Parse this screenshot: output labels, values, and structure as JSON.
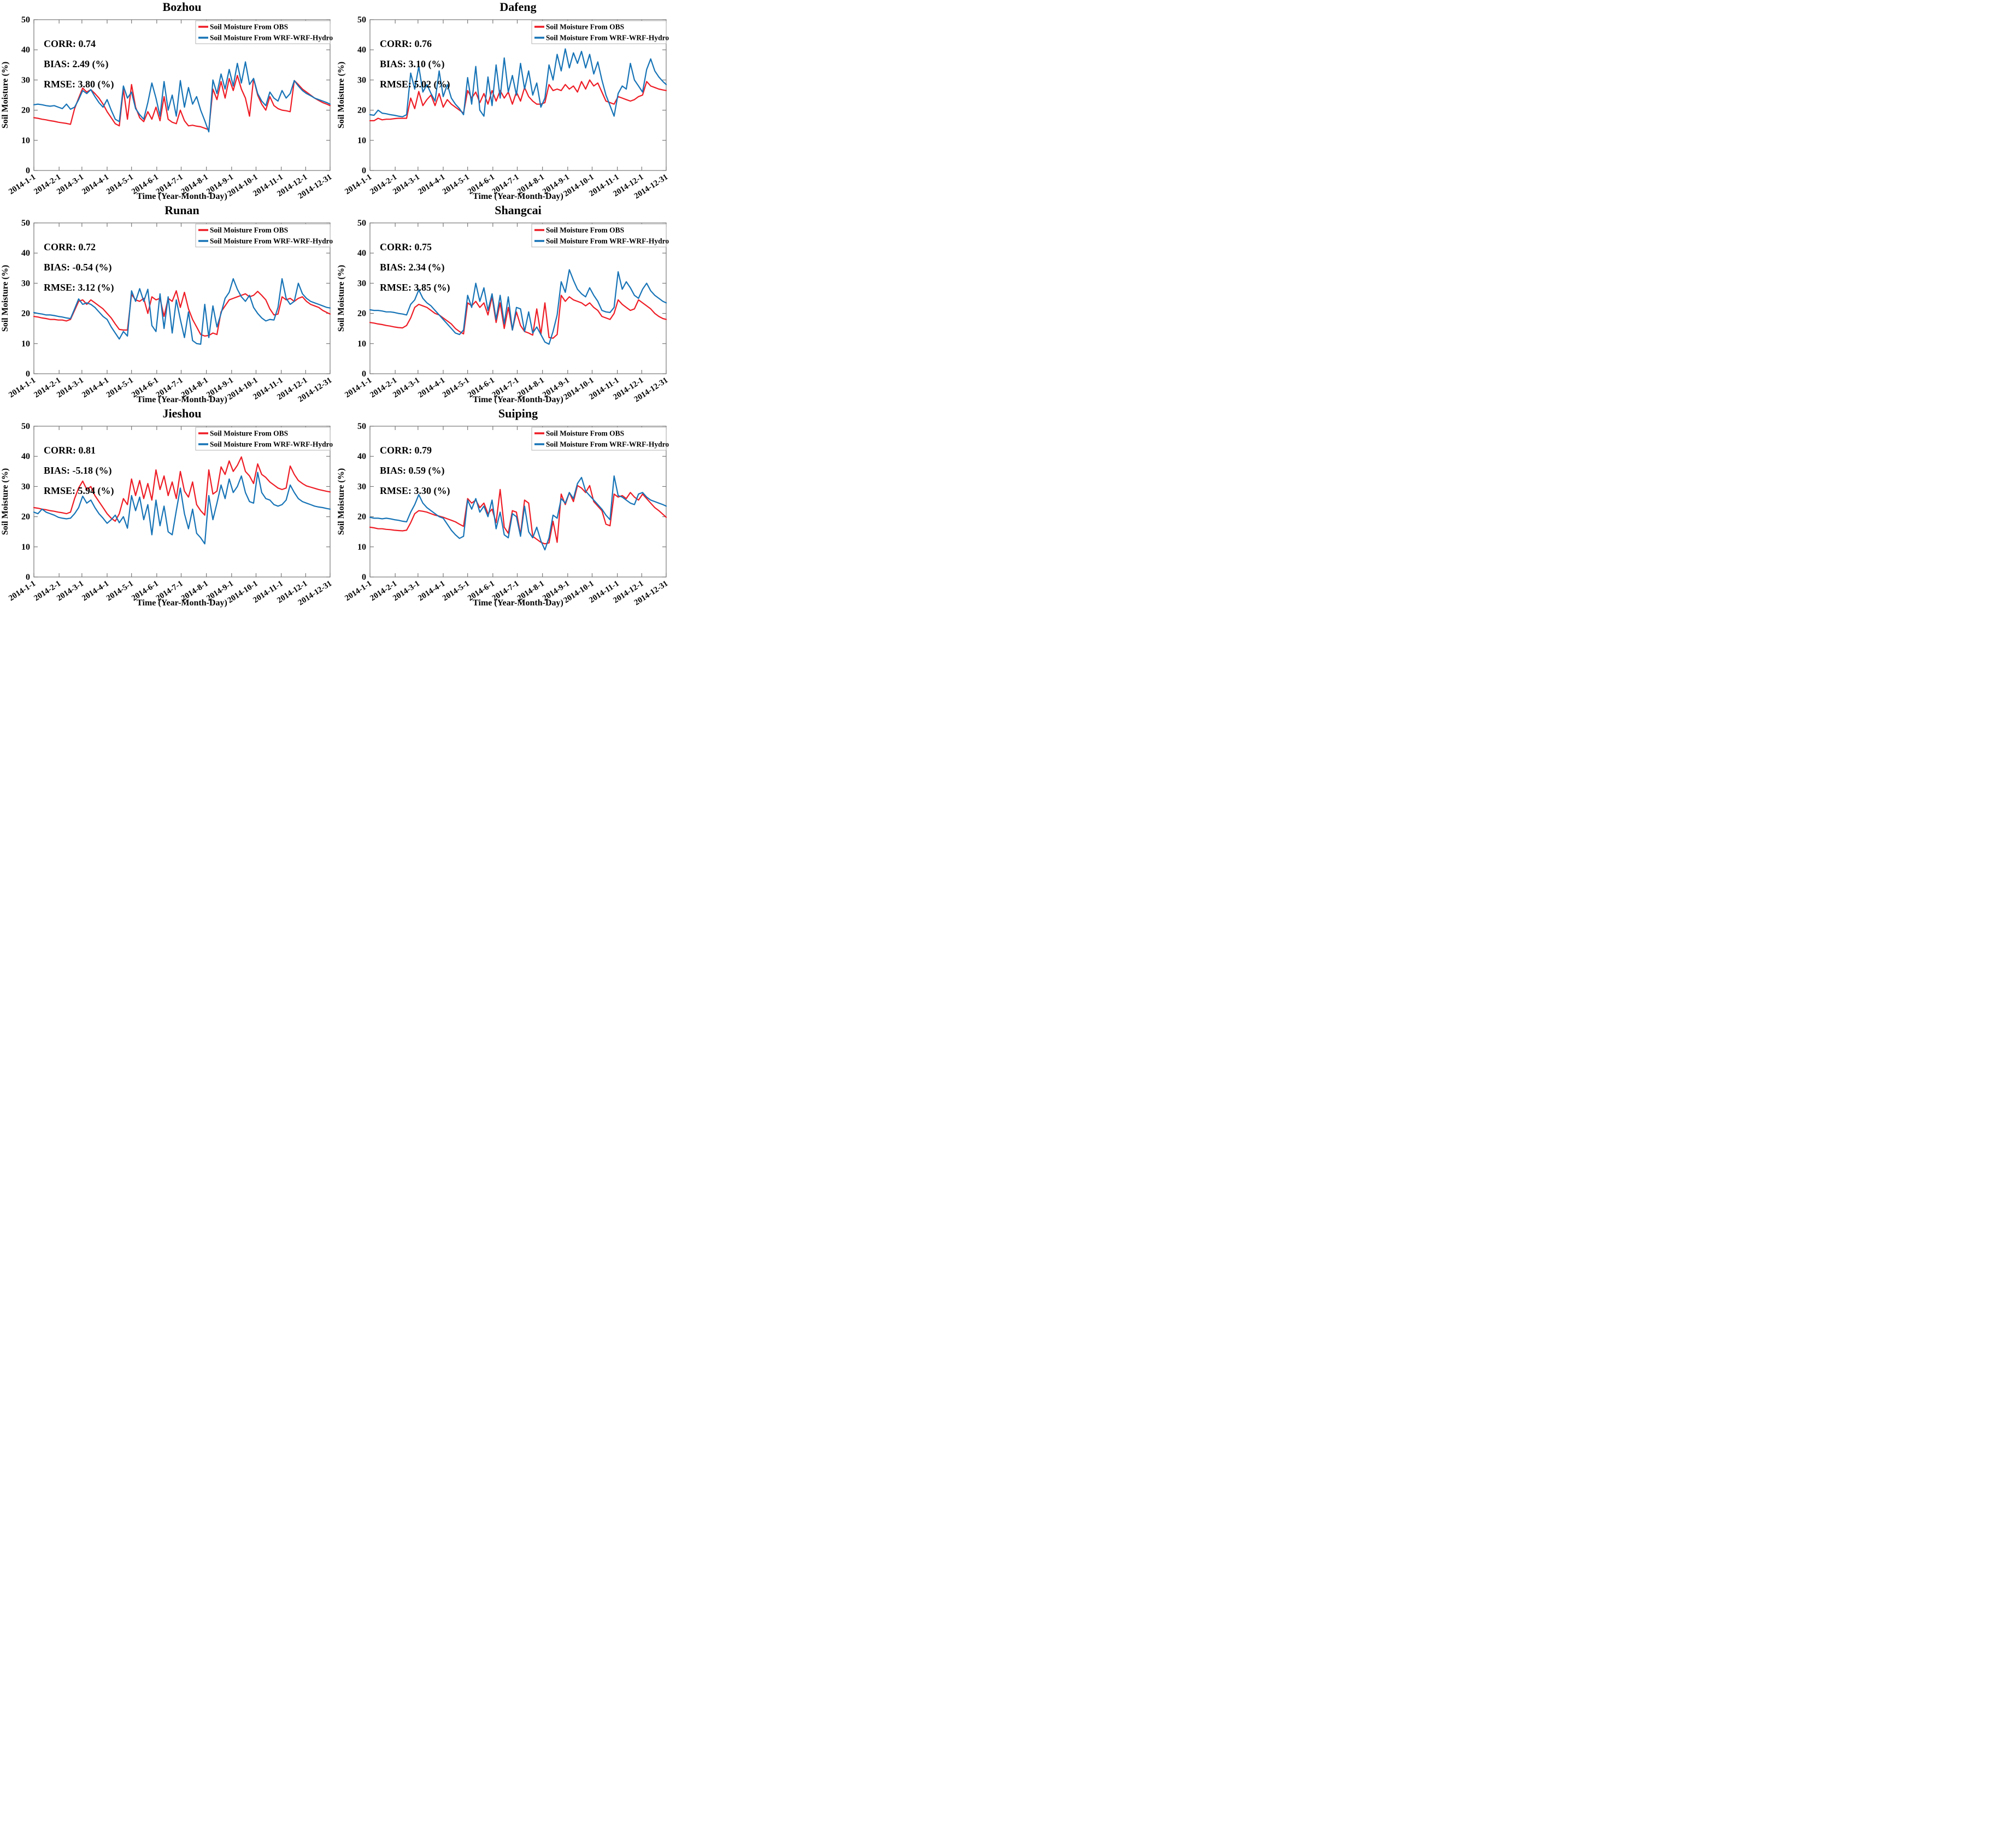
{
  "chart_common": {
    "type": "line",
    "xlabel": "Time (Year-Month-Day)",
    "ylabel": "Soil Moisture (%)",
    "ylim": [
      0,
      50
    ],
    "y_ticks": [
      0,
      10,
      20,
      30,
      40,
      50
    ],
    "x_tick_days": [
      1,
      32,
      60,
      91,
      121,
      152,
      182,
      213,
      244,
      274,
      305,
      335,
      365
    ],
    "x_tick_labels": [
      "2014-1-1",
      "2014-2-1",
      "2014-3-1",
      "2014-4-1",
      "2014-5-1",
      "2014-6-1",
      "2014-7-1",
      "2014-8-1",
      "2014-9-1",
      "2014-10-1",
      "2014-11-1",
      "2014-12-1",
      "2014-12-31"
    ],
    "x_days": [
      1,
      6,
      11,
      16,
      21,
      26,
      31,
      36,
      41,
      46,
      51,
      56,
      61,
      66,
      71,
      76,
      81,
      86,
      91,
      96,
      101,
      106,
      111,
      116,
      121,
      126,
      131,
      136,
      141,
      146,
      151,
      156,
      161,
      166,
      171,
      176,
      181,
      186,
      191,
      196,
      201,
      206,
      211,
      216,
      221,
      226,
      231,
      236,
      241,
      246,
      251,
      256,
      261,
      266,
      271,
      276,
      281,
      286,
      291,
      296,
      301,
      306,
      311,
      316,
      321,
      326,
      331,
      336,
      341,
      346,
      351,
      356,
      361,
      365
    ],
    "grid": "off",
    "legend_position": "top-right-inside",
    "legend": [
      {
        "label": "Soil Moisture From OBS",
        "color": "#ee1c25"
      },
      {
        "label": "Soil Moisture From WRF-WRF-Hydro",
        "color": "#1673b6"
      }
    ],
    "axis_color": "#777777",
    "legend_border_color": "#b0b0b0"
  },
  "chart_data": [
    {
      "id": "bozhou",
      "type": "line",
      "title": "Bozhou",
      "stats_lines": [
        "CORR: 0.74",
        "BIAS: 2.49 (%)",
        "RMSE: 3.80 (%)"
      ],
      "series": [
        {
          "name": "Soil Moisture From OBS",
          "values": [
            17.5,
            17.3,
            17,
            16.8,
            16.5,
            16.3,
            16,
            15.8,
            15.6,
            15.3,
            20.5,
            24,
            27.3,
            26,
            26.8,
            25.5,
            24,
            22,
            19.5,
            17.5,
            15.5,
            14.8,
            27,
            17,
            28.5,
            21,
            17.5,
            16.2,
            19.5,
            17,
            21,
            16.5,
            24.5,
            17,
            16,
            15.5,
            20,
            16.5,
            14.8,
            15,
            14.7,
            14.5,
            14,
            13.5,
            27,
            23.5,
            29.5,
            24,
            30.5,
            26.5,
            31.5,
            27,
            24,
            18,
            30.5,
            25,
            22,
            20,
            24.5,
            21.5,
            20.5,
            20,
            19.8,
            19.5,
            29.8,
            28.5,
            27,
            26,
            25,
            24,
            23.2,
            22.5,
            22,
            21.5
          ]
        },
        {
          "name": "Soil Moisture From WRF-WRF-Hydro",
          "values": [
            21.8,
            22,
            21.8,
            21.5,
            21.3,
            21.5,
            21,
            20.5,
            22,
            20.3,
            21,
            23.5,
            26.5,
            25.5,
            26.8,
            24.5,
            22.5,
            21,
            23.5,
            20,
            17,
            16.2,
            28,
            24,
            26,
            20.5,
            18.5,
            17,
            22.5,
            29,
            24,
            18,
            29.5,
            20,
            25,
            18,
            29.8,
            21,
            27.5,
            22,
            24.5,
            20,
            16.5,
            12.8,
            30,
            25.5,
            32,
            27,
            33.5,
            28,
            35.5,
            29,
            36,
            28.5,
            30.5,
            25.5,
            23,
            21.5,
            26,
            24,
            23,
            26.5,
            24,
            25.5,
            29.8,
            28,
            26.5,
            25.5,
            24.8,
            24,
            23.5,
            23,
            22.5,
            22
          ]
        }
      ]
    },
    {
      "id": "dafeng",
      "type": "line",
      "title": "Dafeng",
      "stats_lines": [
        "CORR: 0.76",
        "BIAS: 3.10 (%)",
        "RMSE: 5.02 (%)"
      ],
      "series": [
        {
          "name": "Soil Moisture From OBS",
          "values": [
            16.5,
            16.5,
            17.3,
            16.8,
            17,
            17,
            17.2,
            17.3,
            17.3,
            17.3,
            24,
            20.5,
            26.2,
            21.5,
            23.5,
            25,
            21.5,
            25.5,
            21,
            23.5,
            22,
            21,
            20,
            19,
            26.5,
            24,
            26,
            22.5,
            25.5,
            22,
            26.5,
            23,
            26.5,
            24,
            26,
            22,
            26,
            23,
            27.5,
            24.5,
            23,
            22,
            22,
            22.5,
            28.5,
            26.5,
            27,
            26.5,
            28.5,
            27,
            28,
            26,
            29.5,
            27,
            30,
            28,
            29,
            26,
            23,
            22.5,
            22,
            24.5,
            24,
            23.5,
            23,
            23.5,
            24.5,
            25,
            29.5,
            28,
            27.5,
            27,
            26.7,
            26.5
          ]
        },
        {
          "name": "Soil Moisture From WRF-WRF-Hydro",
          "values": [
            18.5,
            18.3,
            20,
            19,
            18.8,
            18.5,
            18.3,
            18,
            17.8,
            18.5,
            32.3,
            27,
            34.5,
            26,
            28.5,
            25.5,
            23,
            33,
            24.5,
            28.5,
            24,
            22,
            20.5,
            18.5,
            30.8,
            22,
            34.5,
            20,
            18,
            31,
            21.5,
            35,
            24,
            37.3,
            26,
            31.5,
            25,
            35.5,
            27,
            33,
            25,
            29,
            21,
            24,
            35,
            30,
            38.5,
            33,
            40.3,
            34,
            39,
            35.5,
            39.5,
            34,
            38.5,
            32,
            36,
            30,
            25,
            21.5,
            18,
            25.5,
            28,
            27,
            35.5,
            30,
            28,
            26,
            33.5,
            37,
            33,
            31,
            29.5,
            28.5
          ]
        }
      ]
    },
    {
      "id": "runan",
      "type": "line",
      "title": "Runan",
      "stats_lines": [
        "CORR: 0.72",
        "BIAS: -0.54 (%)",
        "RMSE: 3.12 (%)"
      ],
      "series": [
        {
          "name": "Soil Moisture From OBS",
          "values": [
            19,
            18.8,
            18.5,
            18.3,
            18,
            18,
            17.8,
            17.8,
            17.5,
            18,
            21,
            24,
            24.5,
            23,
            24.5,
            23.5,
            22.5,
            21.5,
            20,
            18.5,
            16.5,
            14.7,
            14.5,
            14.5,
            26.3,
            24.5,
            24,
            25,
            20,
            25.5,
            24.5,
            25,
            19,
            25,
            24,
            27.5,
            22,
            27,
            21.5,
            18,
            15.5,
            13,
            12.5,
            12.7,
            13.5,
            13,
            20.5,
            22.5,
            24.5,
            25,
            25.5,
            26,
            26.5,
            25.5,
            26,
            27.3,
            26,
            24.5,
            21.5,
            19.5,
            19.8,
            25.5,
            24.5,
            25,
            24,
            25,
            25.5,
            24,
            23,
            22.5,
            22,
            21,
            20.3,
            19.8
          ]
        },
        {
          "name": "Soil Moisture From WRF-WRF-Hydro",
          "values": [
            20.3,
            20,
            19.8,
            19.5,
            19.5,
            19.3,
            19,
            18.8,
            18.5,
            18.3,
            21.5,
            24.8,
            23,
            23.5,
            23,
            22,
            20.5,
            19,
            18,
            15.5,
            13.5,
            11.5,
            14,
            12.5,
            27.5,
            24,
            28.2,
            24,
            28,
            16,
            14,
            26.5,
            15,
            25.5,
            13.5,
            24.5,
            18,
            12,
            20.5,
            11,
            10,
            9.8,
            23,
            12,
            22.5,
            15.5,
            20,
            25,
            27,
            31.5,
            28,
            25.5,
            24,
            26,
            22,
            20,
            18.5,
            17.5,
            18,
            17.8,
            22,
            31.5,
            25,
            23,
            24,
            30,
            26.5,
            25,
            24,
            23.5,
            23,
            22.5,
            22,
            21.8
          ]
        }
      ]
    },
    {
      "id": "shangcai",
      "type": "line",
      "title": "Shangcai",
      "stats_lines": [
        "CORR: 0.75",
        "BIAS: 2.34 (%)",
        "RMSE: 3.85 (%)"
      ],
      "series": [
        {
          "name": "Soil Moisture From OBS",
          "values": [
            17,
            16.8,
            16.5,
            16.3,
            16,
            15.8,
            15.5,
            15.3,
            15.2,
            16,
            18.5,
            22,
            23,
            22.5,
            22,
            21,
            20,
            19.5,
            18.5,
            17.5,
            16.5,
            15,
            14,
            13.2,
            23.5,
            22.5,
            24,
            22,
            23.5,
            19.5,
            25.5,
            17,
            23.5,
            15,
            22,
            14.5,
            20.5,
            16,
            14,
            13.5,
            12.8,
            21.5,
            13,
            23.5,
            12,
            11.8,
            13,
            26,
            24,
            25.5,
            24.5,
            24,
            23.5,
            22.5,
            23.5,
            22,
            21,
            19,
            18.5,
            18,
            20,
            24.5,
            23,
            22,
            21,
            21.5,
            24.5,
            23.5,
            22.5,
            21.5,
            20,
            19,
            18.3,
            18
          ]
        },
        {
          "name": "Soil Moisture From WRF-WRF-Hydro",
          "values": [
            21.2,
            21,
            21,
            20.8,
            20.5,
            20.5,
            20.3,
            20,
            19.8,
            19.5,
            23,
            24.5,
            27.8,
            25,
            23.5,
            22.5,
            21,
            19.5,
            18,
            16.5,
            15,
            13.5,
            13,
            14.5,
            26,
            22,
            30,
            24,
            28.5,
            21,
            26.5,
            18,
            26,
            16.5,
            25.5,
            14.5,
            22,
            21.5,
            14,
            20.5,
            13.5,
            15.5,
            13,
            10.5,
            9.8,
            14,
            19.5,
            30.5,
            27,
            34.5,
            31,
            28,
            26.5,
            25.5,
            28.5,
            26,
            24,
            21,
            20.5,
            20.3,
            22,
            33.8,
            28,
            30.5,
            28.5,
            26,
            25,
            28,
            30,
            27.5,
            26,
            25,
            24,
            23.5
          ]
        }
      ]
    },
    {
      "id": "jieshou",
      "type": "line",
      "title": "Jieshou",
      "stats_lines": [
        "CORR: 0.81",
        "BIAS: -5.18 (%)",
        "RMSE: 5.94 (%)"
      ],
      "series": [
        {
          "name": "Soil Moisture From OBS",
          "values": [
            23,
            22.8,
            22.5,
            22.3,
            22,
            21.8,
            21.5,
            21.3,
            21,
            21.5,
            26,
            29.5,
            31.8,
            29,
            30,
            27,
            25,
            23,
            21,
            19.5,
            18.5,
            21,
            26,
            24,
            32.5,
            27,
            32,
            26,
            31,
            25.5,
            35.5,
            29,
            33.5,
            27,
            31.5,
            26,
            35,
            28.5,
            26.5,
            31.5,
            24,
            22,
            20.5,
            35.5,
            27.5,
            28.5,
            36.5,
            34,
            38.5,
            35,
            37,
            39.8,
            35,
            33.5,
            31,
            37.5,
            34,
            33,
            31.5,
            30.5,
            29.5,
            29,
            29.5,
            36.8,
            34,
            32,
            31,
            30.2,
            29.8,
            29.4,
            29,
            28.7,
            28.4,
            28.2
          ]
        },
        {
          "name": "Soil Moisture From WRF-WRF-Hydro",
          "values": [
            21.5,
            21,
            22.5,
            21.5,
            21,
            20.5,
            19.8,
            19.5,
            19.3,
            19.5,
            21,
            23,
            26.8,
            24.5,
            25.5,
            23,
            21,
            19.5,
            17.8,
            19,
            20.5,
            18,
            20,
            16.2,
            27,
            22,
            26.5,
            19,
            24,
            14,
            25.5,
            17,
            23.5,
            15,
            14,
            22,
            29.5,
            21,
            16,
            22.5,
            14.5,
            13,
            11,
            27,
            19,
            24.5,
            30.5,
            26,
            32.5,
            28,
            30,
            33.5,
            28,
            25,
            24.5,
            34.7,
            28,
            26,
            25.5,
            24,
            23.5,
            24,
            25.5,
            30.5,
            28,
            26,
            25,
            24.5,
            24,
            23.5,
            23.2,
            23,
            22.7,
            22.5
          ]
        }
      ]
    },
    {
      "id": "suiping",
      "type": "line",
      "title": "Suiping",
      "stats_lines": [
        "CORR: 0.79",
        "BIAS: 0.59 (%)",
        "RMSE: 3.30 (%)"
      ],
      "series": [
        {
          "name": "Soil Moisture From OBS",
          "values": [
            16.5,
            16.3,
            16,
            16,
            15.8,
            15.7,
            15.5,
            15.4,
            15.3,
            15.5,
            18,
            21,
            22,
            21.8,
            21.5,
            21,
            20.5,
            20.2,
            19.8,
            19.3,
            18.8,
            18.3,
            17.5,
            16.8,
            26,
            24.5,
            25.5,
            23,
            24.5,
            21,
            22.5,
            18,
            29,
            16.5,
            14.5,
            22,
            21.5,
            14,
            25.5,
            24.5,
            13.5,
            12.5,
            11.5,
            11,
            11.3,
            18.5,
            11.5,
            27.5,
            24,
            28,
            25,
            30.3,
            29.5,
            28,
            30.3,
            25,
            23.5,
            22,
            17.5,
            17,
            27.5,
            26.5,
            27,
            26,
            28,
            26.5,
            25.5,
            27.5,
            26,
            24.5,
            23,
            22,
            20.8,
            19.8
          ]
        },
        {
          "name": "Soil Moisture From WRF-WRF-Hydro",
          "values": [
            19.8,
            19.5,
            19.5,
            19.3,
            19.5,
            19.3,
            19,
            18.8,
            18.5,
            18.3,
            21.5,
            24,
            27.3,
            24.5,
            23,
            22,
            21,
            20,
            19.5,
            17.5,
            15.5,
            14,
            12.8,
            13.5,
            25.5,
            22.5,
            26,
            21.5,
            23.5,
            20,
            25.5,
            16,
            21.5,
            14,
            13,
            21,
            20,
            13.5,
            23.5,
            15,
            13,
            16.5,
            12,
            9,
            13,
            20.5,
            19.5,
            26,
            24.5,
            28,
            26,
            31,
            33,
            28.5,
            27,
            25.5,
            24,
            22.5,
            20.5,
            19,
            33.5,
            27,
            26.5,
            25.5,
            24.5,
            24,
            27.5,
            28,
            26.5,
            25.5,
            25,
            24.5,
            24,
            23.5
          ]
        }
      ]
    }
  ]
}
